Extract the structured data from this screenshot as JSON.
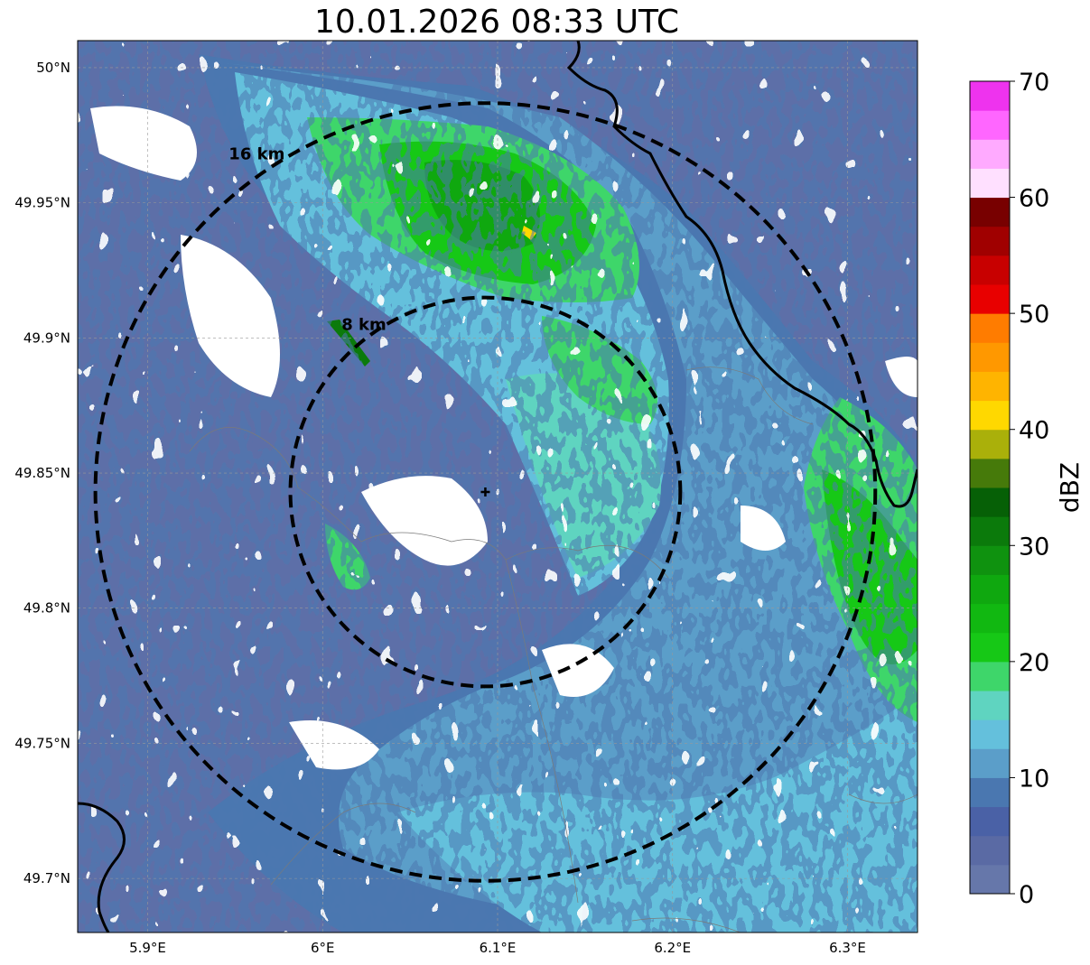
{
  "title": "10.01.2026 08:33 UTC",
  "map": {
    "lon_range": [
      5.86,
      6.34
    ],
    "lat_range": [
      49.68,
      50.01
    ],
    "lon_ticks": [
      {
        "value": 5.9,
        "label": "5.9°E"
      },
      {
        "value": 6.0,
        "label": "6°E"
      },
      {
        "value": 6.1,
        "label": "6.1°E"
      },
      {
        "value": 6.2,
        "label": "6.2°E"
      },
      {
        "value": 6.3,
        "label": "6.3°E"
      }
    ],
    "lat_ticks": [
      {
        "value": 50.0,
        "label": "50°N"
      },
      {
        "value": 49.95,
        "label": "49.95°N"
      },
      {
        "value": 49.9,
        "label": "49.9°N"
      },
      {
        "value": 49.85,
        "label": "49.85°N"
      },
      {
        "value": 49.8,
        "label": "49.8°N"
      },
      {
        "value": 49.75,
        "label": "49.75°N"
      },
      {
        "value": 49.7,
        "label": "49.7°N"
      }
    ],
    "radar_site": {
      "lon": 6.093,
      "lat": 49.843
    },
    "range_rings": [
      {
        "radius_km": 8,
        "label": "8 km"
      },
      {
        "radius_km": 16,
        "label": "16 km"
      }
    ]
  },
  "colorbar": {
    "label": "dBZ",
    "min": 0,
    "max": 70,
    "tick_values": [
      0,
      10,
      20,
      30,
      40,
      50,
      60,
      70
    ],
    "colors": [
      "#6677aa",
      "#5a6aa4",
      "#4a61a6",
      "#4a77b0",
      "#5b9ec9",
      "#64c0dc",
      "#5fd4c0",
      "#3ed66a",
      "#16c816",
      "#11b811",
      "#0fa80f",
      "#0f920f",
      "#0b7a0b",
      "#066006",
      "#467a0a",
      "#aab00a",
      "#ffd800",
      "#ffb400",
      "#ff9800",
      "#ff7c00",
      "#e80000",
      "#c80000",
      "#a00000",
      "#780000",
      "#ffe0ff",
      "#ffaaff",
      "#ff66ff",
      "#ee33ee"
    ]
  }
}
